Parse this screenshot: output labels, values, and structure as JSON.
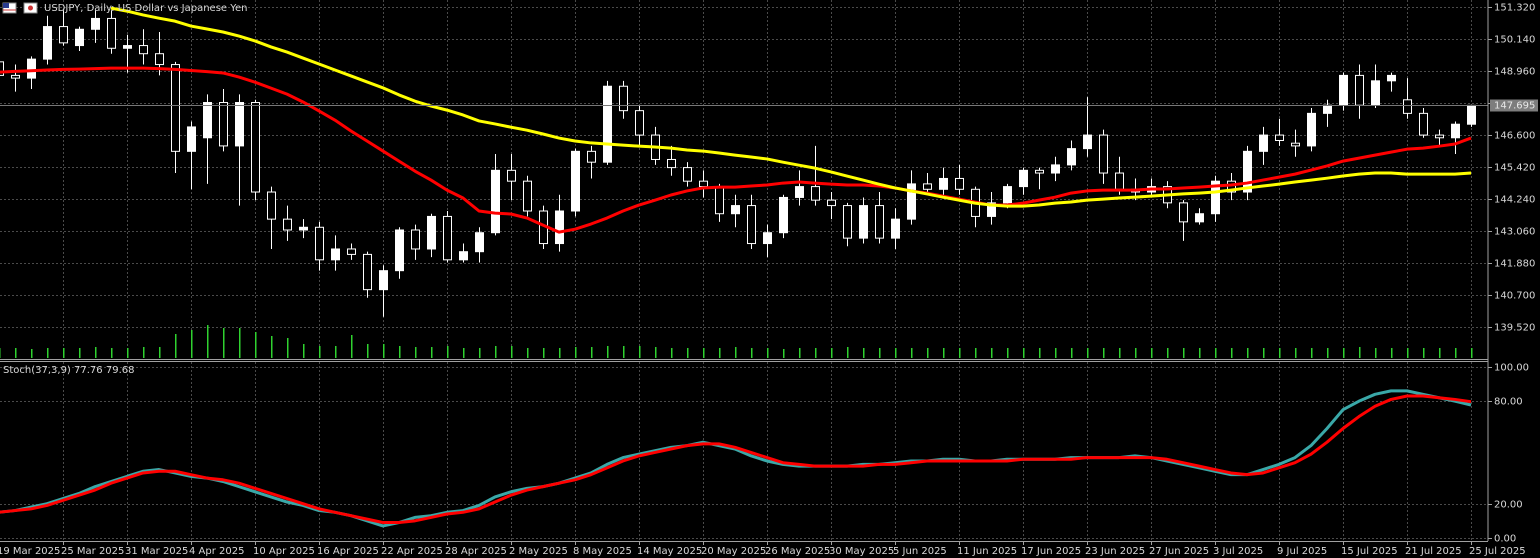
{
  "chart_data": [
    {
      "type": "candlestick",
      "title": "USDJPY, Daily: US Dollar vs Japanese Yen",
      "categories": [
        "19 Mar 2025",
        null,
        null,
        null,
        "25 Mar 2025",
        null,
        null,
        null,
        "31 Mar 2025",
        null,
        null,
        null,
        "4 Apr 2025",
        null,
        null,
        null,
        "10 Apr 2025",
        null,
        null,
        null,
        "16 Apr 2025",
        null,
        null,
        null,
        "22 Apr 2025",
        null,
        null,
        null,
        "28 Apr 2025",
        null,
        null,
        null,
        "2 May 2025",
        null,
        null,
        null,
        "8 May 2025",
        null,
        null,
        null,
        "14 May 2025",
        null,
        null,
        null,
        "20 May 2025",
        null,
        null,
        null,
        "26 May 2025",
        null,
        null,
        null,
        "30 May 2025",
        null,
        null,
        null,
        "5 Jun 2025",
        null,
        null,
        null,
        "11 Jun 2025",
        null,
        null,
        null,
        "17 Jun 2025",
        null,
        null,
        null,
        "23 Jun 2025",
        null,
        null,
        null,
        "27 Jun 2025",
        null,
        null,
        null,
        "3 Jul 2025",
        null,
        null,
        null,
        "9 Jul 2025",
        null,
        null,
        null,
        "15 Jul 2025",
        null,
        null,
        null,
        "21 Jul 2025",
        null,
        null,
        null,
        "25 Jul 2025"
      ],
      "open": [
        149.3,
        148.8,
        148.7,
        149.4,
        150.6,
        149.9,
        150.5,
        150.9,
        149.8,
        149.9,
        149.6,
        149.2,
        146.0,
        146.5,
        147.8,
        146.2,
        147.8,
        144.5,
        143.5,
        143.1,
        143.2,
        142.0,
        142.4,
        142.2,
        140.9,
        141.6,
        143.1,
        142.4,
        143.6,
        142.0,
        142.3,
        143.0,
        145.3,
        144.9,
        143.8,
        142.6,
        143.8,
        146.0,
        145.6,
        148.4,
        147.5,
        146.6,
        145.7,
        145.4,
        144.9,
        144.7,
        143.7,
        144.0,
        142.6,
        143.0,
        144.3,
        144.7,
        144.2,
        144.0,
        142.8,
        144.0,
        142.8,
        143.5,
        144.8,
        144.6,
        145.0,
        144.6,
        143.6,
        144.1,
        144.7,
        145.3,
        145.2,
        145.5,
        146.1,
        146.6,
        145.2,
        144.6,
        144.5,
        144.7,
        144.1,
        143.4,
        143.7,
        144.9,
        144.5,
        146.0,
        146.6,
        146.3,
        146.2,
        147.4,
        147.7,
        148.8,
        147.7,
        148.6,
        147.9,
        147.4,
        146.6,
        146.5,
        147.0
      ],
      "high": [
        149.6,
        149.2,
        149.5,
        151.0,
        151.2,
        150.6,
        151.2,
        151.2,
        150.3,
        150.5,
        150.4,
        149.3,
        147.1,
        148.1,
        148.3,
        148.1,
        147.9,
        144.7,
        144.0,
        143.5,
        143.4,
        142.9,
        142.6,
        142.3,
        141.8,
        143.2,
        143.3,
        143.7,
        143.8,
        142.6,
        143.2,
        145.9,
        145.9,
        145.1,
        144.0,
        144.4,
        146.1,
        146.2,
        148.6,
        148.6,
        147.7,
        146.9,
        146.2,
        145.6,
        145.3,
        144.8,
        144.4,
        144.4,
        143.3,
        144.4,
        145.3,
        146.2,
        144.5,
        144.1,
        144.3,
        144.5,
        143.9,
        145.3,
        145.2,
        145.4,
        145.5,
        144.7,
        144.5,
        144.8,
        145.4,
        145.4,
        145.8,
        146.4,
        148.0,
        146.8,
        145.8,
        145.0,
        145.0,
        144.9,
        144.2,
        143.9,
        145.1,
        145.2,
        146.2,
        146.9,
        147.2,
        146.8,
        147.6,
        147.9,
        148.9,
        149.2,
        149.2,
        148.9,
        148.7,
        147.6,
        146.8,
        147.1,
        147.7
      ],
      "low": [
        148.6,
        148.2,
        148.3,
        149.2,
        149.9,
        149.7,
        150.0,
        149.6,
        148.9,
        149.2,
        148.8,
        145.2,
        144.6,
        144.8,
        146.0,
        144.0,
        144.2,
        142.4,
        142.7,
        142.8,
        141.6,
        141.6,
        142.0,
        140.6,
        139.9,
        141.3,
        142.0,
        142.1,
        141.9,
        141.9,
        141.9,
        142.9,
        144.2,
        143.6,
        142.4,
        142.3,
        143.6,
        145.0,
        145.5,
        147.2,
        146.2,
        145.5,
        145.1,
        144.7,
        144.3,
        143.4,
        143.2,
        142.4,
        142.1,
        142.8,
        144.0,
        144.0,
        143.5,
        142.5,
        142.6,
        142.6,
        142.4,
        143.3,
        144.4,
        144.3,
        144.4,
        143.2,
        143.3,
        143.9,
        144.4,
        144.6,
        144.9,
        145.3,
        145.8,
        144.8,
        144.4,
        144.2,
        144.3,
        143.9,
        142.7,
        143.3,
        143.4,
        144.2,
        144.2,
        145.5,
        146.2,
        145.8,
        146.0,
        146.9,
        147.5,
        147.2,
        147.6,
        148.2,
        147.2,
        146.5,
        146.2,
        145.9,
        146.9
      ],
      "close": [
        148.8,
        148.7,
        149.4,
        150.6,
        150.0,
        150.5,
        150.9,
        149.8,
        149.9,
        149.6,
        149.2,
        146.0,
        146.9,
        147.8,
        146.2,
        147.8,
        144.5,
        143.5,
        143.1,
        143.2,
        142.0,
        142.4,
        142.2,
        140.9,
        141.6,
        143.1,
        142.4,
        143.6,
        142.0,
        142.3,
        143.0,
        145.3,
        144.9,
        143.8,
        142.6,
        143.8,
        146.0,
        145.6,
        148.4,
        147.5,
        146.6,
        145.7,
        145.4,
        144.9,
        144.7,
        143.7,
        144.0,
        142.6,
        143.0,
        144.3,
        144.7,
        144.2,
        144.0,
        142.8,
        144.0,
        142.8,
        143.5,
        144.8,
        144.6,
        145.0,
        144.6,
        143.6,
        144.1,
        144.7,
        145.3,
        145.2,
        145.5,
        146.1,
        146.6,
        145.2,
        144.6,
        144.5,
        144.7,
        144.1,
        143.4,
        143.7,
        144.9,
        144.5,
        146.0,
        146.6,
        146.4,
        146.2,
        147.4,
        147.7,
        148.8,
        147.7,
        148.6,
        148.8,
        147.4,
        146.6,
        146.5,
        147.0,
        147.695
      ],
      "volume": [
        10,
        10,
        9,
        10,
        10,
        10,
        11,
        10,
        10,
        11,
        11,
        24,
        28,
        33,
        30,
        30,
        26,
        22,
        20,
        14,
        12,
        12,
        23,
        14,
        14,
        12,
        11,
        11,
        12,
        10,
        10,
        12,
        12,
        10,
        10,
        10,
        11,
        11,
        12,
        12,
        12,
        11,
        10,
        10,
        10,
        10,
        11,
        10,
        10,
        9,
        10,
        10,
        10,
        11,
        10,
        10,
        10,
        10,
        10,
        10,
        10,
        10,
        10,
        10,
        10,
        10,
        10,
        10,
        10,
        10,
        10,
        10,
        10,
        10,
        10,
        10,
        10,
        10,
        10,
        10,
        10,
        10,
        10,
        10,
        10,
        11,
        10,
        10,
        10,
        10,
        10,
        10,
        10
      ],
      "moving_averages": [
        {
          "color": "#ff0000",
          "values": [
            148.92,
            148.95,
            148.97,
            149.0,
            149.02,
            149.03,
            149.05,
            149.07,
            149.07,
            149.07,
            149.05,
            149.02,
            148.98,
            148.94,
            148.89,
            148.74,
            148.55,
            148.33,
            148.11,
            147.82,
            147.49,
            147.15,
            146.75,
            146.38,
            146.01,
            145.64,
            145.27,
            144.94,
            144.57,
            144.28,
            143.8,
            143.72,
            143.69,
            143.54,
            143.28,
            143.02,
            143.13,
            143.32,
            143.54,
            143.8,
            144.02,
            144.2,
            144.39,
            144.54,
            144.65,
            144.68,
            144.68,
            144.72,
            144.76,
            144.83,
            144.87,
            144.83,
            144.79,
            144.76,
            144.76,
            144.72,
            144.65,
            144.54,
            144.46,
            144.35,
            144.24,
            144.13,
            144.02,
            144.02,
            144.09,
            144.2,
            144.31,
            144.46,
            144.54,
            144.57,
            144.57,
            144.57,
            144.61,
            144.61,
            144.65,
            144.68,
            144.72,
            144.76,
            144.83,
            144.94,
            145.05,
            145.16,
            145.31,
            145.46,
            145.64,
            145.75,
            145.86,
            145.97,
            146.08,
            146.12,
            146.19,
            146.27,
            146.49
          ]
        },
        {
          "color": "#ffff00",
          "values": [
            null,
            null,
            null,
            null,
            null,
            null,
            null,
            151.28,
            151.17,
            151.03,
            150.91,
            150.8,
            150.62,
            150.51,
            150.4,
            150.25,
            150.07,
            149.85,
            149.66,
            149.44,
            149.22,
            149.0,
            148.78,
            148.56,
            148.34,
            148.08,
            147.85,
            147.67,
            147.52,
            147.34,
            147.12,
            147.01,
            146.89,
            146.78,
            146.64,
            146.49,
            146.38,
            146.31,
            146.27,
            146.23,
            146.19,
            146.16,
            146.12,
            146.05,
            146.01,
            145.94,
            145.86,
            145.79,
            145.72,
            145.6,
            145.49,
            145.38,
            145.24,
            145.09,
            144.94,
            144.79,
            144.65,
            144.54,
            144.43,
            144.31,
            144.2,
            144.09,
            144.02,
            143.98,
            143.98,
            144.02,
            144.09,
            144.13,
            144.2,
            144.24,
            144.28,
            144.31,
            144.35,
            144.39,
            144.43,
            144.46,
            144.5,
            144.57,
            144.65,
            144.72,
            144.79,
            144.87,
            144.94,
            145.01,
            145.09,
            145.16,
            145.2,
            145.2,
            145.16,
            145.16,
            145.16,
            145.16,
            145.2
          ]
        }
      ],
      "up_color": "#ffffff",
      "down_color": "#000000",
      "wick_color": "#ffffff",
      "volume_color": "#2fd22f",
      "ylim": [
        138.38,
        151.58
      ],
      "yticks": [
        {
          "value": 151.32,
          "label": "151.320"
        },
        {
          "value": 150.14,
          "label": "150.140"
        },
        {
          "value": 148.96,
          "label": "148.960"
        },
        {
          "value": 147.78,
          "label": "147.780"
        },
        {
          "value": 146.6,
          "label": "146.600"
        },
        {
          "value": 145.42,
          "label": "145.420"
        },
        {
          "value": 144.24,
          "label": "144.240"
        },
        {
          "value": 143.06,
          "label": "143.060"
        },
        {
          "value": 141.88,
          "label": "141.880"
        },
        {
          "value": 140.7,
          "label": "140.700"
        },
        {
          "value": 139.52,
          "label": "139.520"
        }
      ],
      "last_price": 147.695,
      "grid": true
    },
    {
      "type": "line",
      "label": "Stoch(37,3,9)",
      "series": [
        {
          "color": "#3aa8a8",
          "values": [
            15,
            16,
            18,
            20,
            23,
            26,
            30,
            33,
            36,
            39,
            40,
            38,
            36,
            35,
            33,
            30,
            27,
            24,
            21,
            19,
            16,
            15,
            13,
            10,
            7,
            9,
            12,
            13,
            15,
            16,
            19,
            24,
            27,
            29,
            30,
            32,
            35,
            38,
            43,
            47,
            49,
            51,
            53,
            54,
            56,
            54,
            52,
            48,
            45,
            43,
            42,
            42,
            42,
            42,
            43,
            43,
            44,
            45,
            45,
            46,
            46,
            45,
            45,
            46,
            46,
            46,
            46,
            47,
            47,
            47,
            47,
            48,
            47,
            45,
            43,
            41,
            39,
            37,
            37,
            40,
            43,
            47,
            54,
            64,
            75,
            80,
            84,
            86,
            86,
            84,
            82,
            80,
            77.76
          ]
        },
        {
          "color": "#ff0000",
          "values": [
            15,
            16,
            17,
            19,
            22,
            25,
            28,
            32,
            35,
            38,
            39,
            39,
            37,
            35,
            34,
            32,
            29,
            26,
            23,
            20,
            17,
            15,
            13,
            11,
            9,
            9,
            10,
            12,
            14,
            15,
            17,
            21,
            25,
            28,
            30,
            32,
            34,
            37,
            41,
            45,
            48,
            50,
            52,
            54,
            55,
            55,
            53,
            50,
            47,
            44,
            43,
            42,
            42,
            42,
            42,
            43,
            43,
            44,
            45,
            45,
            45,
            45,
            45,
            45,
            46,
            46,
            46,
            46,
            47,
            47,
            47,
            47,
            47,
            46,
            44,
            42,
            40,
            38,
            37,
            38,
            41,
            44,
            49,
            56,
            64,
            71,
            77,
            81,
            83,
            83,
            82,
            81,
            79.68
          ]
        }
      ],
      "ylim": [
        -1.8,
        102.9
      ],
      "yticks": [
        {
          "value": 100,
          "label": "100.00"
        },
        {
          "value": 80,
          "label": "80.00"
        },
        {
          "value": 20,
          "label": "20.00"
        },
        {
          "value": 0,
          "label": "0.00"
        }
      ],
      "grid": true
    }
  ]
}
